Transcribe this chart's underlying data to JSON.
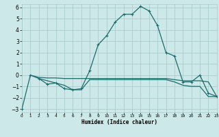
{
  "title": "",
  "xlabel": "Humidex (Indice chaleur)",
  "bg_color": "#cce8e8",
  "grid_color": "#aacccc",
  "line_color": "#1a6b6b",
  "line1": {
    "x": [
      0,
      1,
      2,
      3,
      4,
      5,
      6,
      7,
      8,
      9,
      10,
      11,
      12,
      13,
      14,
      15,
      16,
      17,
      18,
      19,
      20,
      21,
      22,
      23
    ],
    "y": [
      -3.0,
      0.0,
      -0.3,
      -0.8,
      -0.7,
      -1.2,
      -1.3,
      -1.2,
      0.4,
      2.7,
      3.5,
      4.7,
      5.4,
      5.4,
      6.1,
      5.7,
      4.4,
      2.0,
      1.7,
      -0.6,
      -0.6,
      0.0,
      -1.6,
      -1.9
    ]
  },
  "line2": {
    "x": [
      1,
      2,
      3,
      4,
      5,
      6,
      7,
      8,
      9,
      10,
      11,
      12,
      13,
      14,
      15,
      16,
      17,
      18,
      19,
      20,
      21,
      22,
      23
    ],
    "y": [
      0.0,
      -0.2,
      -0.25,
      -0.25,
      -0.3,
      -0.3,
      -0.3,
      -0.3,
      -0.3,
      -0.3,
      -0.3,
      -0.3,
      -0.3,
      -0.3,
      -0.3,
      -0.3,
      -0.3,
      -0.4,
      -0.5,
      -0.5,
      -0.5,
      -0.6,
      -1.9
    ]
  },
  "line3": {
    "x": [
      2,
      3,
      4,
      5,
      6,
      7,
      8,
      9,
      10,
      11,
      12,
      13,
      14,
      15,
      16,
      17,
      18,
      19,
      20,
      21,
      22,
      23
    ],
    "y": [
      -0.3,
      -0.5,
      -0.7,
      -0.9,
      -1.3,
      -1.3,
      -0.4,
      -0.4,
      -0.4,
      -0.4,
      -0.4,
      -0.4,
      -0.4,
      -0.4,
      -0.4,
      -0.4,
      -0.6,
      -0.9,
      -1.0,
      -1.0,
      -1.9,
      -1.9
    ]
  },
  "xlim": [
    0,
    23
  ],
  "ylim": [
    -3.3,
    6.3
  ],
  "yticks": [
    -3,
    -2,
    -1,
    0,
    1,
    2,
    3,
    4,
    5,
    6
  ],
  "xticks": [
    0,
    1,
    2,
    3,
    4,
    5,
    6,
    7,
    8,
    9,
    10,
    11,
    12,
    13,
    14,
    15,
    16,
    17,
    18,
    19,
    20,
    21,
    22,
    23
  ],
  "xlabel_fontsize": 5.5,
  "ytick_fontsize": 5.5,
  "xtick_fontsize": 4.2
}
